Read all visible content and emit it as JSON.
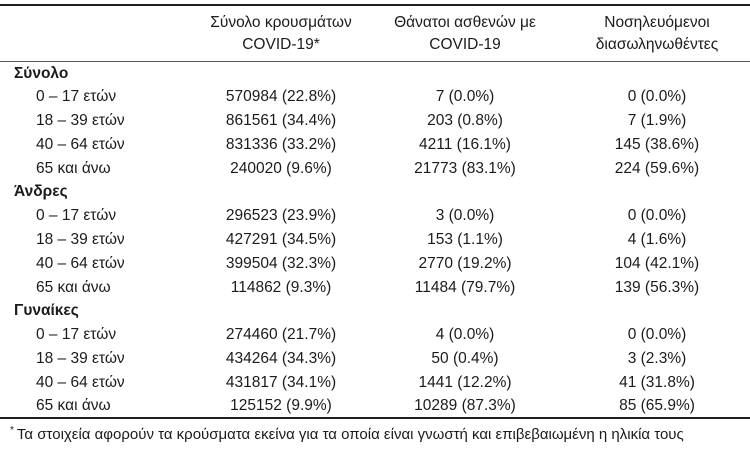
{
  "table": {
    "headers": [
      {
        "line1": "Σύνολο κρουσμάτων",
        "line2": "COVID-19*"
      },
      {
        "line1": "Θάνατοι ασθενών με",
        "line2": "COVID-19"
      },
      {
        "line1": "Νοσηλευόμενοι",
        "line2": "διασωληνωθέντες"
      }
    ],
    "groups": [
      {
        "label": "Σύνολο",
        "rows": [
          {
            "age": "0 – 17 ετών",
            "cases": "570984 (22.8%)",
            "deaths": "7 (0.0%)",
            "intubated": "0 (0.0%)"
          },
          {
            "age": "18 – 39 ετών",
            "cases": "861561 (34.4%)",
            "deaths": "203 (0.8%)",
            "intubated": "7 (1.9%)"
          },
          {
            "age": "40 – 64 ετών",
            "cases": "831336 (33.2%)",
            "deaths": "4211 (16.1%)",
            "intubated": "145 (38.6%)"
          },
          {
            "age": "65 και άνω",
            "cases": "240020 (9.6%)",
            "deaths": "21773 (83.1%)",
            "intubated": "224 (59.6%)"
          }
        ]
      },
      {
        "label": "Άνδρες",
        "rows": [
          {
            "age": "0 – 17 ετών",
            "cases": "296523 (23.9%)",
            "deaths": "3 (0.0%)",
            "intubated": "0 (0.0%)"
          },
          {
            "age": "18 – 39 ετών",
            "cases": "427291 (34.5%)",
            "deaths": "153 (1.1%)",
            "intubated": "4 (1.6%)"
          },
          {
            "age": "40 – 64 ετών",
            "cases": "399504 (32.3%)",
            "deaths": "2770 (19.2%)",
            "intubated": "104 (42.1%)"
          },
          {
            "age": "65 και άνω",
            "cases": "114862 (9.3%)",
            "deaths": "11484 (79.7%)",
            "intubated": "139 (56.3%)"
          }
        ]
      },
      {
        "label": "Γυναίκες",
        "rows": [
          {
            "age": "0 – 17 ετών",
            "cases": "274460 (21.7%)",
            "deaths": "4 (0.0%)",
            "intubated": "0 (0.0%)"
          },
          {
            "age": "18 – 39 ετών",
            "cases": "434264 (34.3%)",
            "deaths": "50 (0.4%)",
            "intubated": "3 (2.3%)"
          },
          {
            "age": "40 – 64 ετών",
            "cases": "431817 (34.1%)",
            "deaths": "1441 (12.2%)",
            "intubated": "41 (31.8%)"
          },
          {
            "age": "65 και άνω",
            "cases": "125152 (9.9%)",
            "deaths": "10289 (87.3%)",
            "intubated": "85 (65.9%)"
          }
        ]
      }
    ]
  },
  "footnote": {
    "marker": "*",
    "text": "Τα στοιχεία αφορούν τα κρούσματα εκείνα για τα οποία είναι γνωστή και επιβεβαιωμένη η ηλικία τους"
  },
  "colors": {
    "text": "#1b1b1b",
    "rule_heavy": "#1f1f1f",
    "rule_light": "#5a5a5a",
    "background": "#ffffff"
  }
}
